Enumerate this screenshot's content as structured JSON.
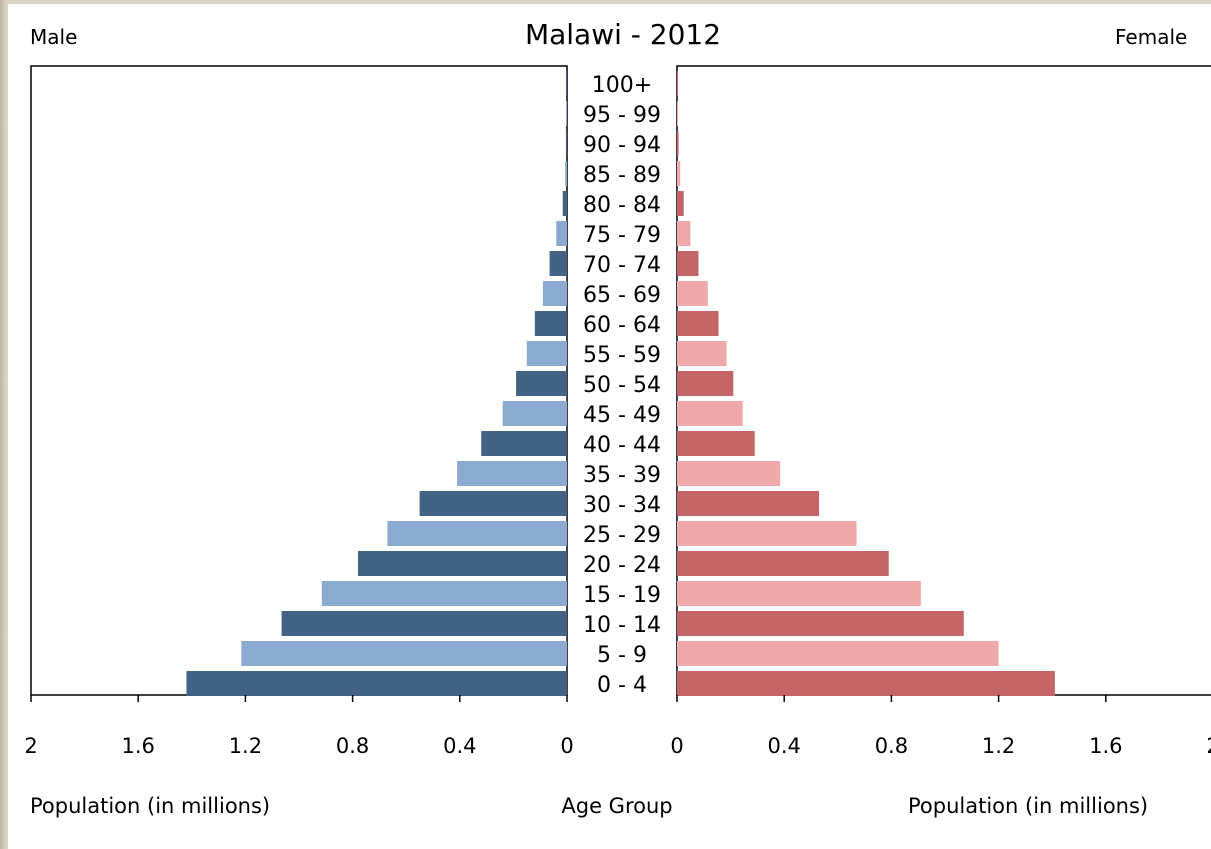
{
  "chart_data": {
    "type": "bar",
    "title": "Malawi - 2012",
    "left_label": "Male",
    "right_label": "Female",
    "xlabel_left": "Population (in millions)",
    "xlabel_center": "Age Group",
    "xlabel_right": "Population (in millions)",
    "xlim": [
      0,
      2
    ],
    "x_ticks": [
      "2",
      "1.6",
      "1.2",
      "0.8",
      "0.4",
      "0",
      "0",
      "0.4",
      "0.8",
      "1.2",
      "1.6",
      "2"
    ],
    "categories": [
      "100+",
      "95 - 99",
      "90 - 94",
      "85 - 89",
      "80 - 84",
      "75 - 79",
      "70 - 74",
      "65 - 69",
      "60 - 64",
      "55 - 59",
      "50 - 54",
      "45 - 49",
      "40 - 44",
      "35 - 39",
      "30 - 34",
      "25 - 29",
      "20 - 24",
      "15 - 19",
      "10 - 14",
      "5 - 9",
      "0 - 4"
    ],
    "series": [
      {
        "name": "Male",
        "values": [
          0.001,
          0.002,
          0.004,
          0.007,
          0.016,
          0.04,
          0.065,
          0.09,
          0.12,
          0.15,
          0.19,
          0.24,
          0.32,
          0.41,
          0.55,
          0.67,
          0.78,
          0.915,
          1.065,
          1.215,
          1.42
        ]
      },
      {
        "name": "Female",
        "values": [
          0.002,
          0.003,
          0.006,
          0.012,
          0.025,
          0.05,
          0.08,
          0.115,
          0.155,
          0.185,
          0.21,
          0.245,
          0.29,
          0.385,
          0.53,
          0.67,
          0.79,
          0.91,
          1.07,
          1.2,
          1.41
        ]
      }
    ],
    "colors": {
      "male_dark": "#436385",
      "male_light": "#8aaacf",
      "female_dark": "#c56466",
      "female_light": "#f0a9ab"
    },
    "grid": false
  }
}
